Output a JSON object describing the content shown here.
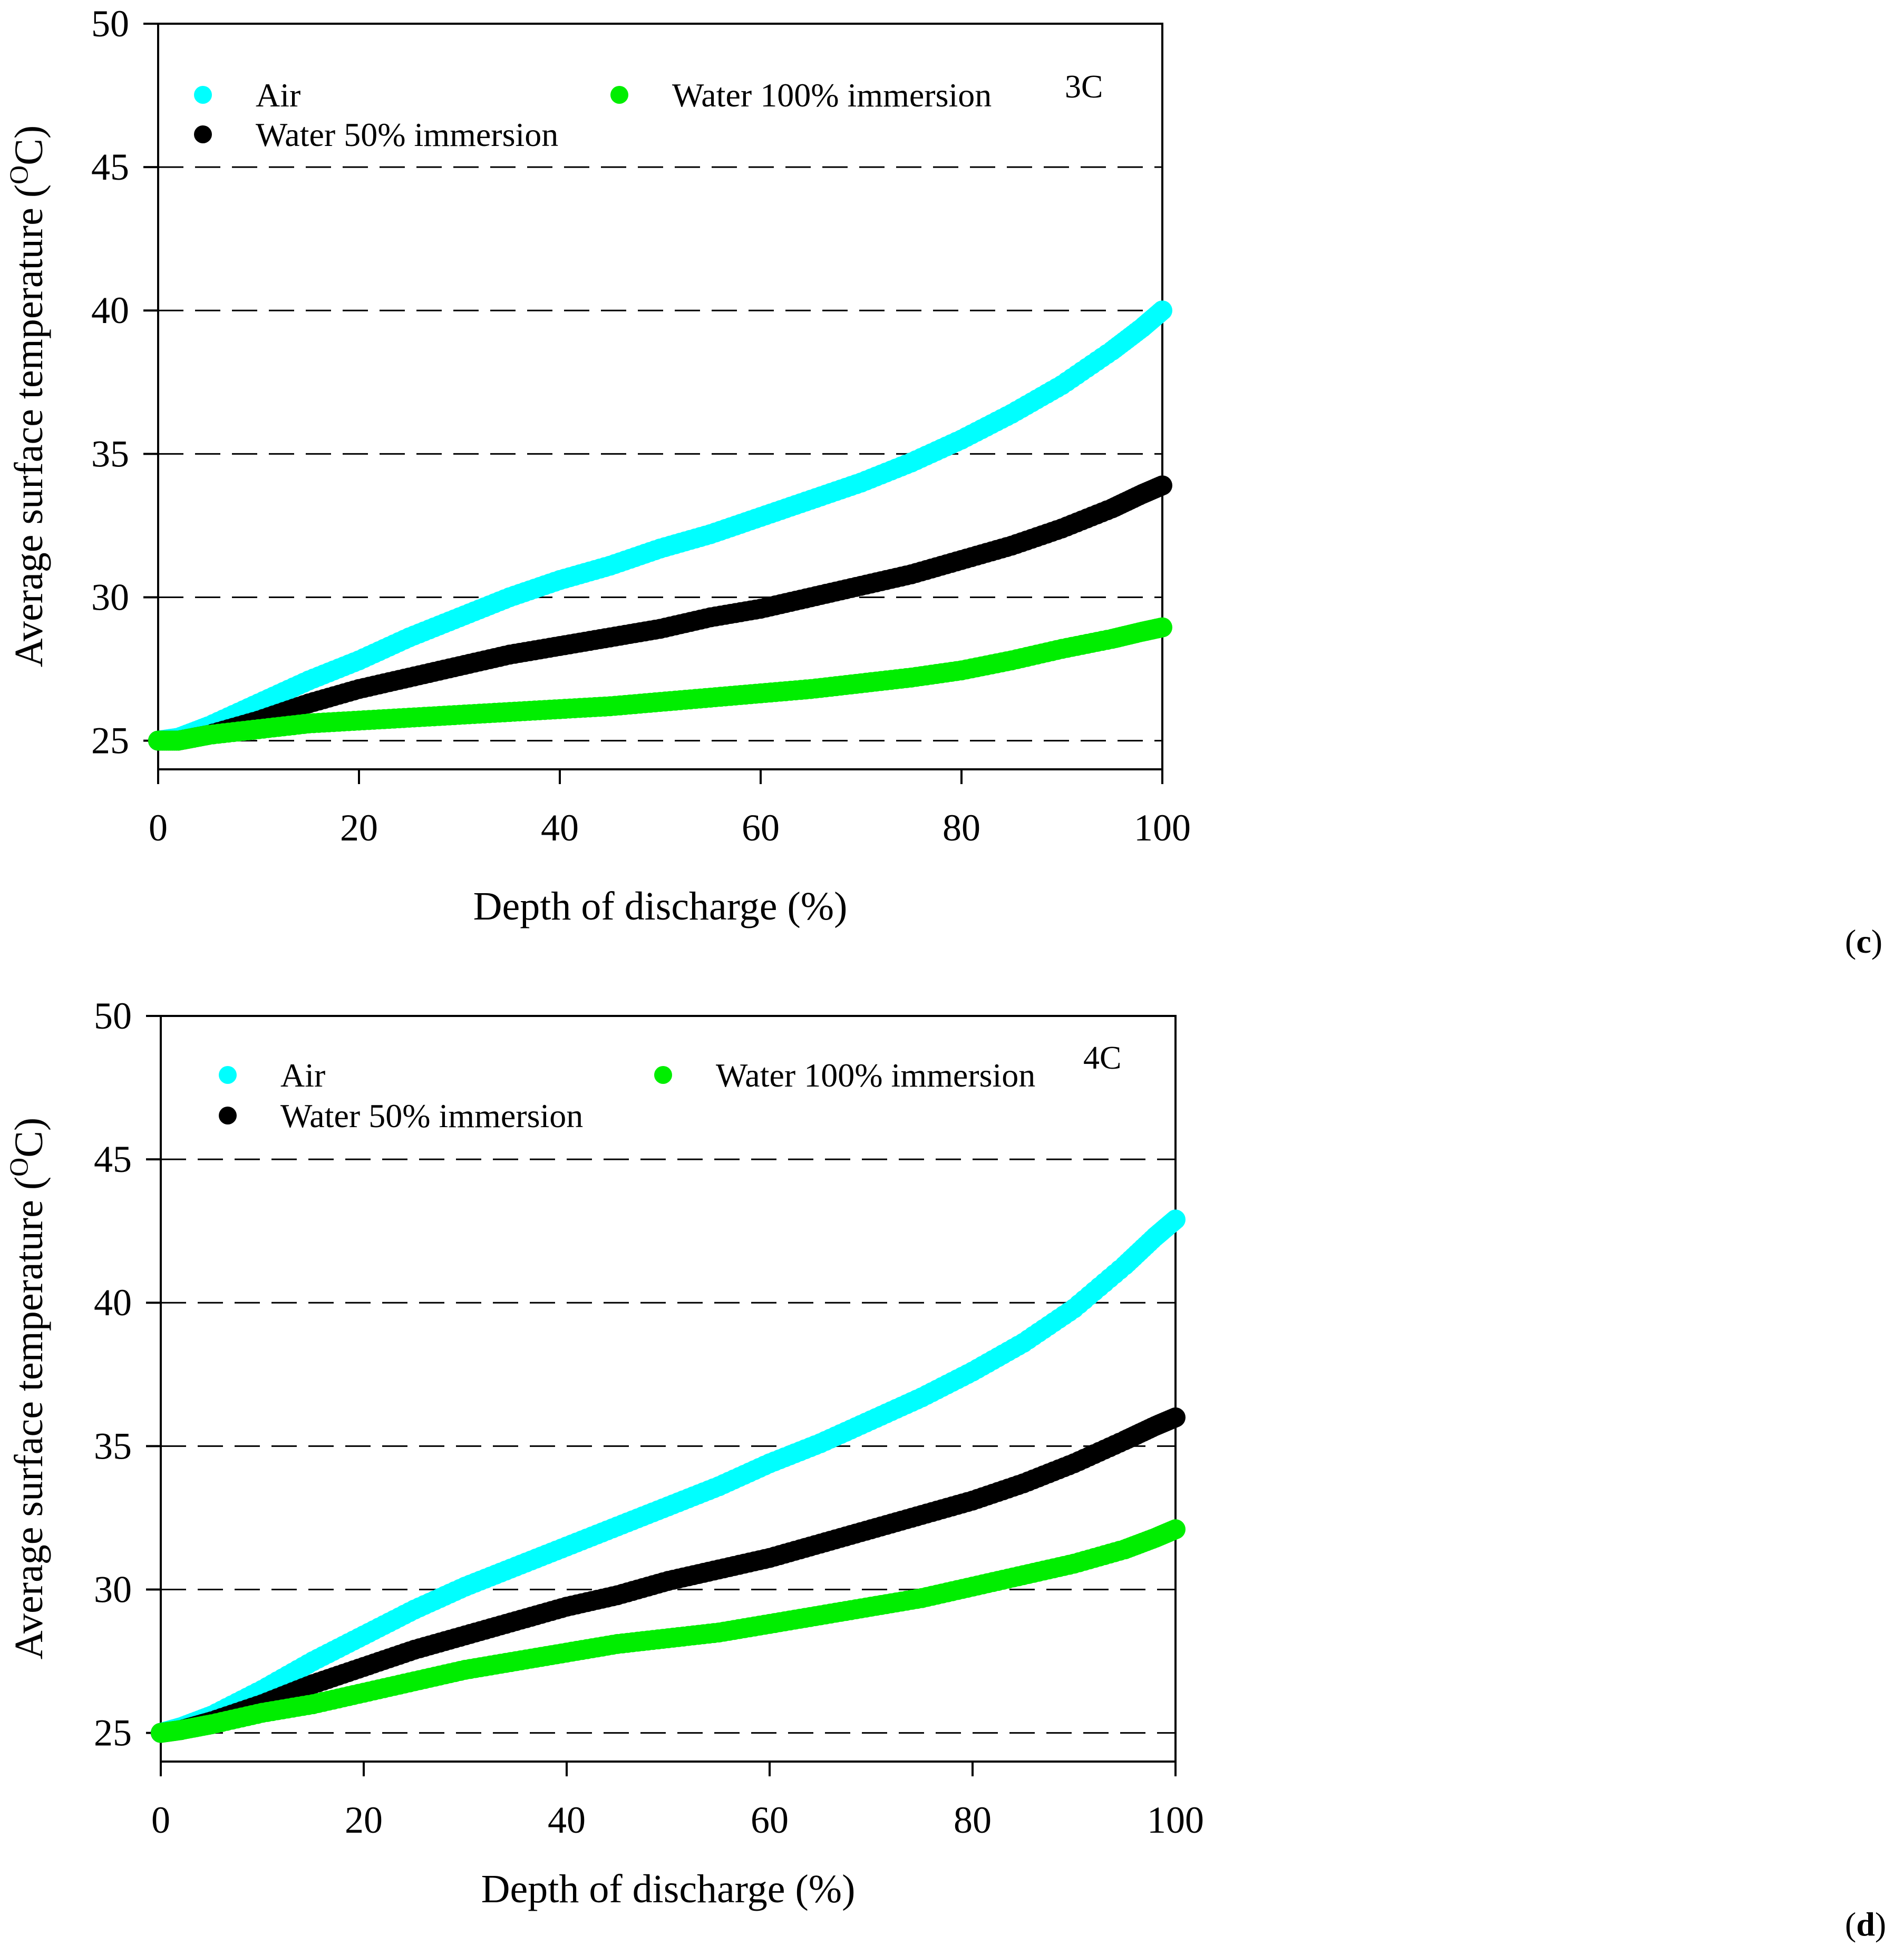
{
  "panels": [
    {
      "tag_open": "(",
      "tag_letter": "c",
      "tag_close": ")",
      "rate_label": "3C",
      "chart_data": {
        "type": "scatter",
        "xlabel": "Depth of discharge (%)",
        "ylabel": "Average surface temperature (",
        "ylabel_sup": "O",
        "ylabel_tail": "C)",
        "xlim": [
          0,
          100
        ],
        "ylim": [
          24,
          50
        ],
        "xticks": [
          0,
          20,
          40,
          60,
          80,
          100
        ],
        "yticks": [
          25,
          30,
          35,
          40,
          45,
          50
        ],
        "grid": "horizontal dashed",
        "legend_placement": "top",
        "series": [
          {
            "name": "Air",
            "color": "#00ffff",
            "x": [
              0,
              2,
              5,
              10,
              15,
              20,
              25,
              30,
              35,
              40,
              45,
              50,
              55,
              60,
              65,
              70,
              75,
              80,
              85,
              90,
              95,
              98,
              100
            ],
            "y": [
              25.0,
              25.1,
              25.5,
              26.3,
              27.1,
              27.8,
              28.6,
              29.3,
              30.0,
              30.6,
              31.1,
              31.7,
              32.2,
              32.8,
              33.4,
              34.0,
              34.7,
              35.5,
              36.4,
              37.4,
              38.6,
              39.4,
              40.0
            ]
          },
          {
            "name": "Water 50% immersion",
            "color": "#000000",
            "x": [
              0,
              2,
              5,
              10,
              15,
              20,
              25,
              30,
              35,
              40,
              45,
              50,
              55,
              60,
              65,
              70,
              75,
              80,
              85,
              90,
              95,
              98,
              100
            ],
            "y": [
              25.0,
              25.0,
              25.2,
              25.7,
              26.3,
              26.8,
              27.2,
              27.6,
              28.0,
              28.3,
              28.6,
              28.9,
              29.3,
              29.6,
              30.0,
              30.4,
              30.8,
              31.3,
              31.8,
              32.4,
              33.1,
              33.6,
              33.9
            ]
          },
          {
            "name": "Water 100% immersion",
            "color": "#00ee00",
            "x": [
              0,
              2,
              5,
              10,
              15,
              20,
              25,
              30,
              35,
              40,
              45,
              50,
              55,
              60,
              65,
              70,
              75,
              80,
              85,
              90,
              95,
              98,
              100
            ],
            "y": [
              25.0,
              25.0,
              25.2,
              25.4,
              25.6,
              25.7,
              25.8,
              25.9,
              26.0,
              26.1,
              26.2,
              26.35,
              26.5,
              26.65,
              26.8,
              27.0,
              27.2,
              27.45,
              27.8,
              28.2,
              28.55,
              28.8,
              28.95
            ]
          }
        ]
      }
    },
    {
      "tag_open": "(",
      "tag_letter": "d",
      "tag_close": ")",
      "rate_label": "4C",
      "chart_data": {
        "type": "scatter",
        "xlabel": "Depth of discharge (%)",
        "ylabel": "Average surface temperature (",
        "ylabel_sup": "O",
        "ylabel_tail": "C)",
        "xlim": [
          0,
          100
        ],
        "ylim": [
          24,
          50
        ],
        "xticks": [
          0,
          20,
          40,
          60,
          80,
          100
        ],
        "yticks": [
          25,
          30,
          35,
          40,
          45,
          50
        ],
        "grid": "horizontal dashed",
        "legend_placement": "top",
        "series": [
          {
            "name": "Air",
            "color": "#00ffff",
            "x": [
              0,
              2,
              5,
              10,
              15,
              20,
              25,
              30,
              35,
              40,
              45,
              50,
              55,
              60,
              65,
              70,
              75,
              80,
              85,
              90,
              95,
              98,
              100
            ],
            "y": [
              25.0,
              25.2,
              25.6,
              26.5,
              27.5,
              28.4,
              29.3,
              30.1,
              30.8,
              31.5,
              32.2,
              32.9,
              33.6,
              34.4,
              35.1,
              35.9,
              36.7,
              37.6,
              38.6,
              39.8,
              41.3,
              42.3,
              42.9
            ]
          },
          {
            "name": "Water 50% immersion",
            "color": "#000000",
            "x": [
              0,
              2,
              5,
              10,
              15,
              20,
              25,
              30,
              35,
              40,
              45,
              50,
              55,
              60,
              65,
              70,
              75,
              80,
              85,
              90,
              95,
              98,
              100
            ],
            "y": [
              25.0,
              25.1,
              25.4,
              26.0,
              26.7,
              27.3,
              27.9,
              28.4,
              28.9,
              29.4,
              29.8,
              30.3,
              30.7,
              31.1,
              31.6,
              32.1,
              32.6,
              33.1,
              33.7,
              34.4,
              35.2,
              35.7,
              36.0
            ]
          },
          {
            "name": "Water 100% immersion",
            "color": "#00ee00",
            "x": [
              0,
              2,
              5,
              10,
              15,
              20,
              25,
              30,
              35,
              40,
              45,
              50,
              55,
              60,
              65,
              70,
              75,
              80,
              85,
              90,
              95,
              98,
              100
            ],
            "y": [
              25.0,
              25.1,
              25.3,
              25.7,
              26.0,
              26.4,
              26.8,
              27.2,
              27.5,
              27.8,
              28.1,
              28.3,
              28.5,
              28.8,
              29.1,
              29.4,
              29.7,
              30.1,
              30.5,
              30.9,
              31.4,
              31.8,
              32.1
            ]
          }
        ]
      }
    }
  ]
}
